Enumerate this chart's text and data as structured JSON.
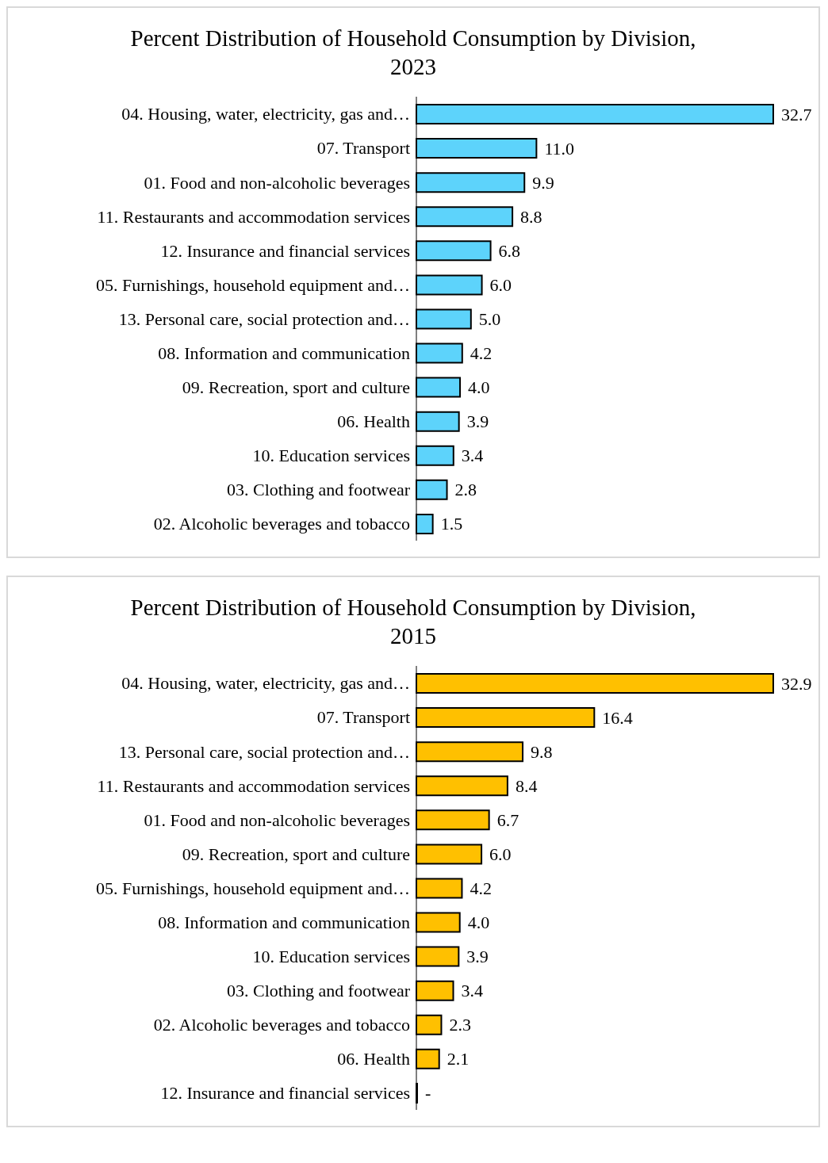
{
  "chart_data": [
    {
      "type": "bar",
      "orientation": "horizontal",
      "title": "Percent Distribution of Household Consumption by Division, 2023",
      "categories": [
        "04. Housing, water, electricity, gas and…",
        "07. Transport",
        "01. Food and non-alcoholic beverages",
        "11. Restaurants and accommodation services",
        "12. Insurance and financial services",
        "05. Furnishings, household equipment and…",
        "13. Personal care, social protection and…",
        "08. Information and communication",
        "09. Recreation, sport and culture",
        "06. Health",
        "10. Education services",
        "03. Clothing and footwear",
        "02. Alcoholic beverages and tobacco"
      ],
      "values": [
        32.7,
        11.0,
        9.9,
        8.8,
        6.8,
        6.0,
        5.0,
        4.2,
        4.0,
        3.9,
        3.4,
        2.8,
        1.5
      ],
      "value_labels": [
        "32.7",
        "11.0",
        "9.9",
        "8.8",
        "6.8",
        "6.0",
        "5.0",
        "4.2",
        "4.0",
        "3.9",
        "3.4",
        "2.8",
        "1.5"
      ],
      "color": "#5dd3fb",
      "grid": false,
      "legend": false
    },
    {
      "type": "bar",
      "orientation": "horizontal",
      "title": "Percent Distribution of Household Consumption by Division, 2015",
      "categories": [
        "04. Housing, water, electricity, gas and…",
        "07. Transport",
        "13. Personal care, social protection and…",
        "11. Restaurants and accommodation services",
        "01. Food and non-alcoholic beverages",
        "09. Recreation, sport and culture",
        "05. Furnishings, household equipment and…",
        "08. Information and communication",
        "10. Education services",
        "03. Clothing and footwear",
        "02. Alcoholic beverages and tobacco",
        "06. Health",
        "12. Insurance and financial services"
      ],
      "values": [
        32.9,
        16.4,
        9.8,
        8.4,
        6.7,
        6.0,
        4.2,
        4.0,
        3.9,
        3.4,
        2.3,
        2.1,
        0
      ],
      "value_labels": [
        "32.9",
        "16.4",
        "9.8",
        "8.4",
        "6.7",
        "6.0",
        "4.2",
        "4.0",
        "3.9",
        "3.4",
        "2.3",
        "2.1",
        "-"
      ],
      "color": "#ffc000",
      "grid": false,
      "legend": false
    }
  ]
}
